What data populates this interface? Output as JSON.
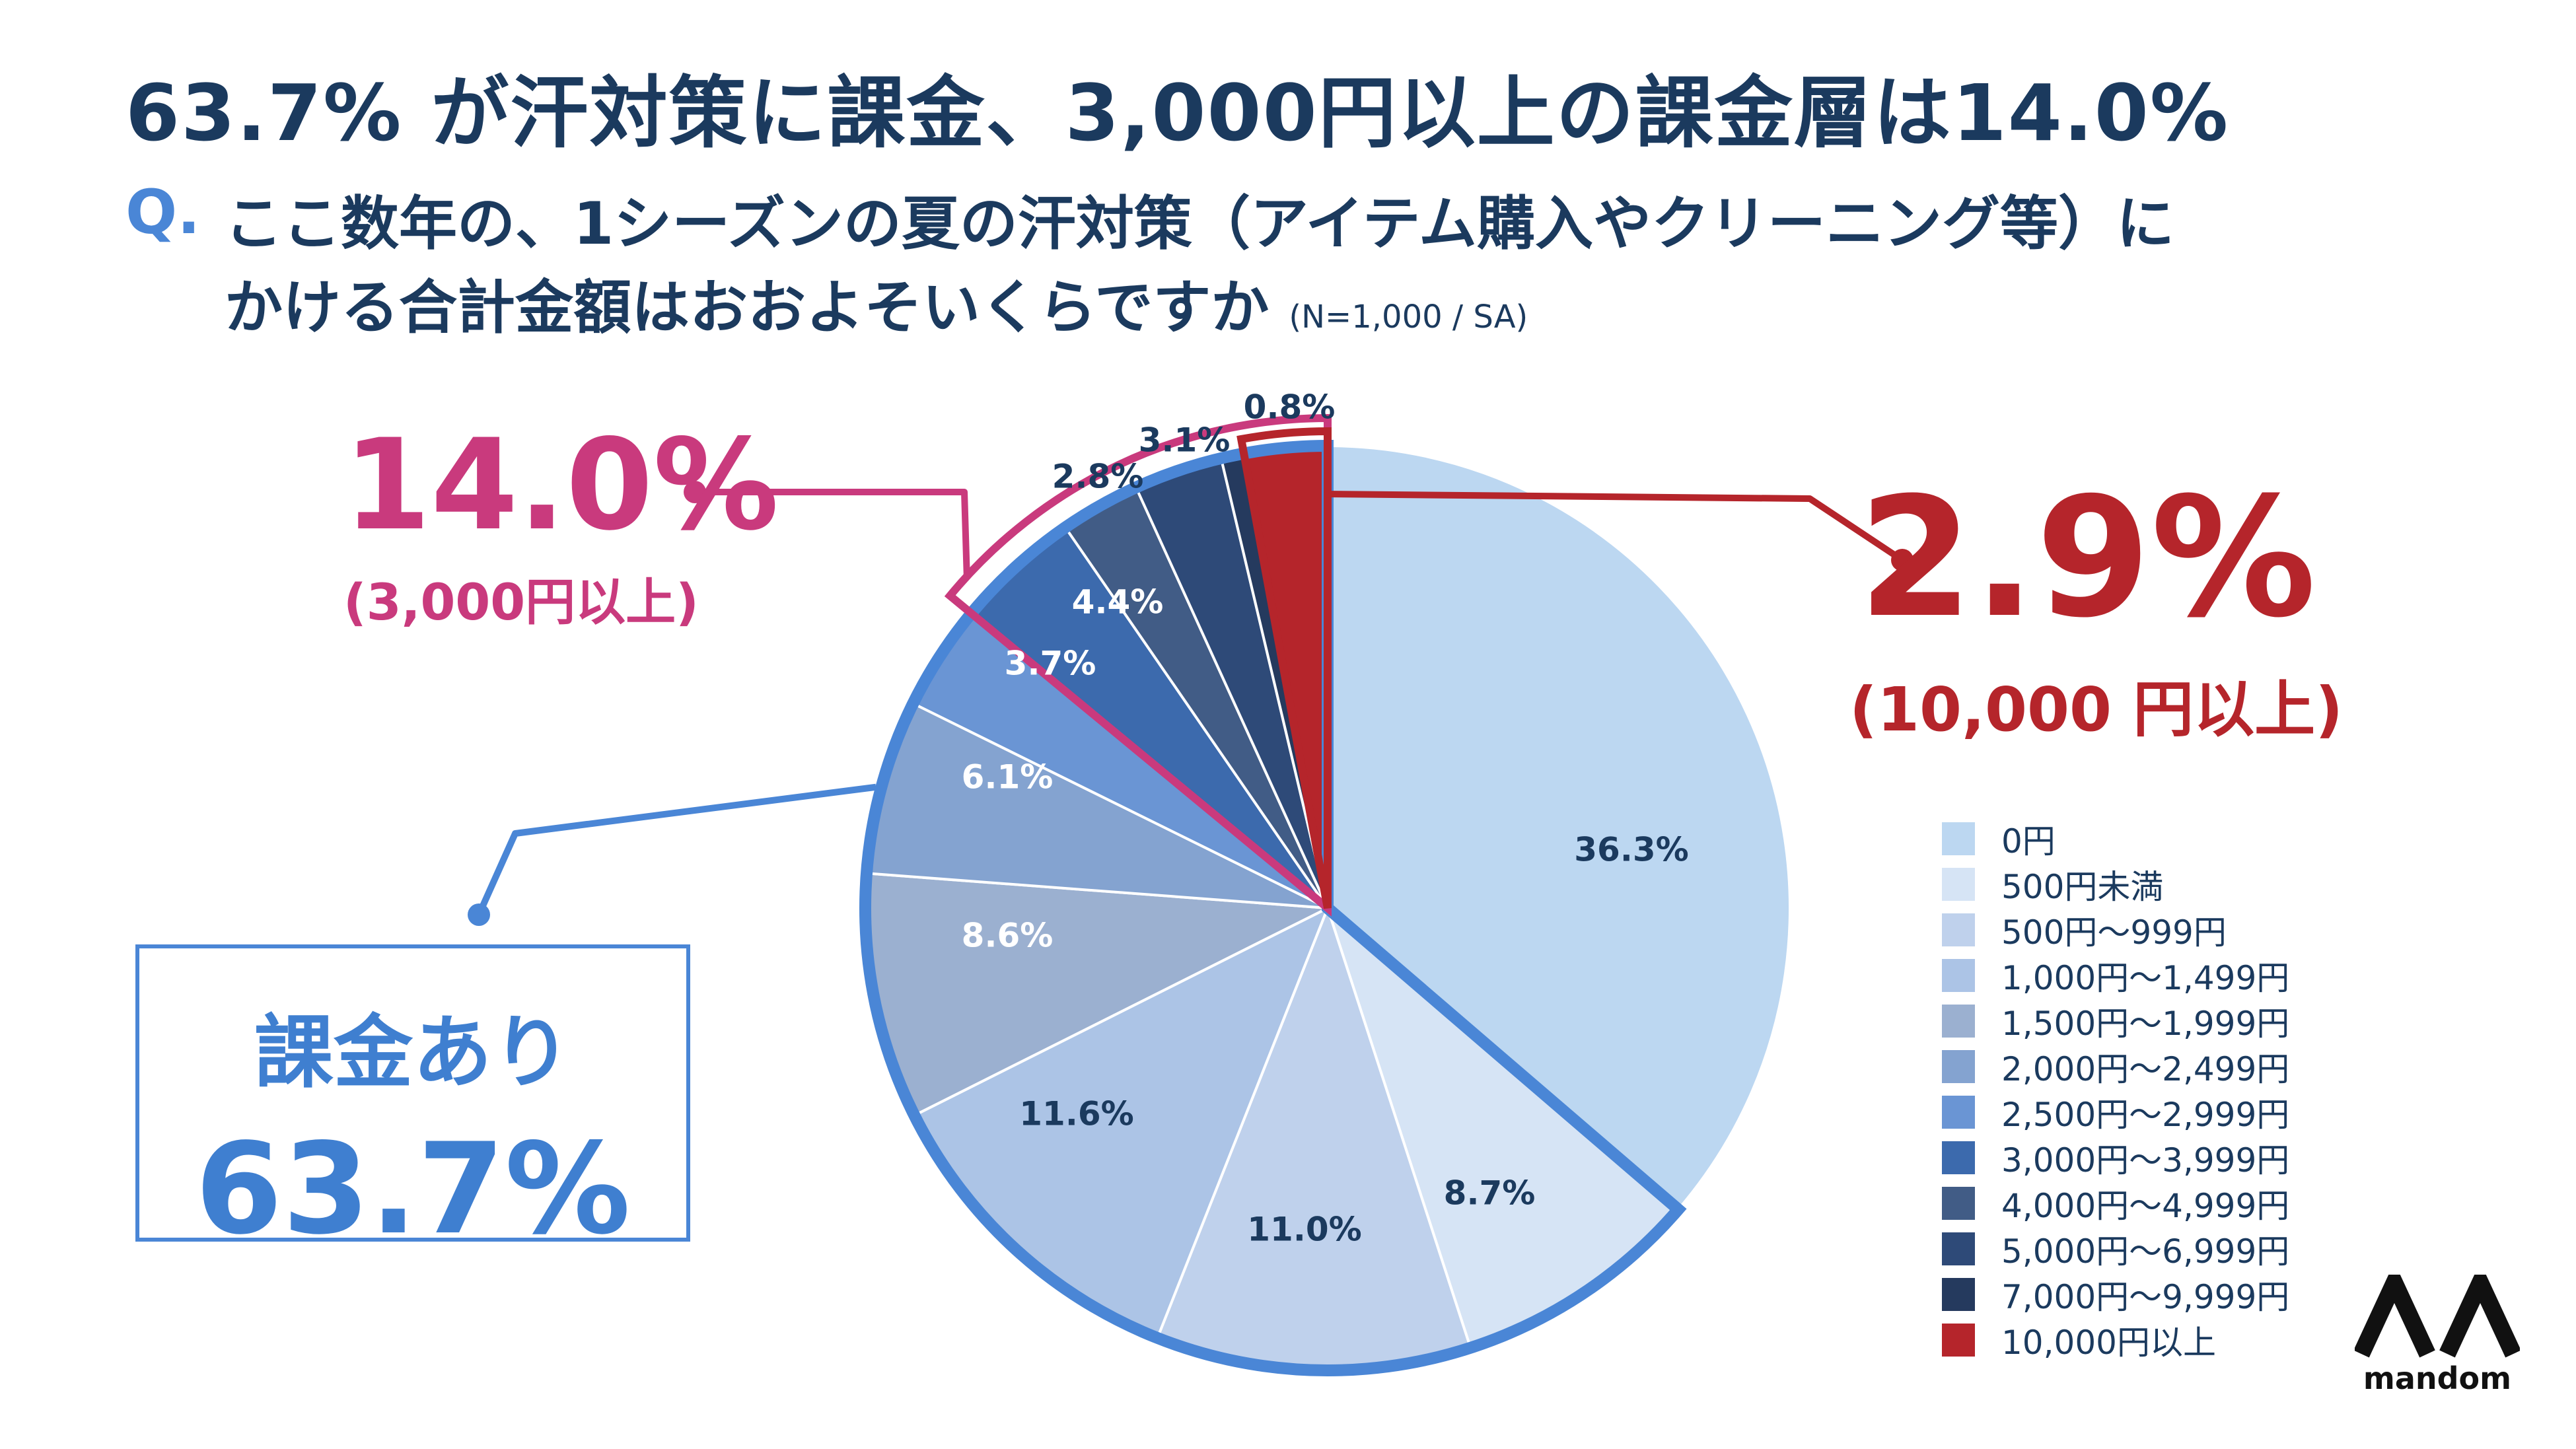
{
  "header": {
    "title": "63.7% が汗対策に課金、3,000円以上の課金層は14.0%",
    "question_prefix": "Q.",
    "question_line1": "ここ数年の、1シーズンの夏の汗対策（アイテム購入やクリーニング等）に",
    "question_line2": "かける合計金額はおおよそいくらですか",
    "sample_note": "(N=1,000 / SA)"
  },
  "chart_data": {
    "type": "pie",
    "start_angle_deg": 0,
    "direction": "clockwise",
    "slices": [
      {
        "label": "0円",
        "value": 36.3,
        "display": "36.3%",
        "color": "#bcd7f1",
        "text_color": "#1b3a5e"
      },
      {
        "label": "500円未満",
        "value": 8.7,
        "display": "8.7%",
        "color": "#d6e4f5",
        "text_color": "#1b3a5e"
      },
      {
        "label": "500円〜999円",
        "value": 11.0,
        "display": "11.0%",
        "color": "#bfd1ec",
        "text_color": "#1b3a5e"
      },
      {
        "label": "1,000円〜1,499円",
        "value": 11.6,
        "display": "11.6%",
        "color": "#acc4e6",
        "text_color": "#1b3a5e"
      },
      {
        "label": "1,500円〜1,999円",
        "value": 8.6,
        "display": "8.6%",
        "color": "#9bb0d0",
        "text_color": "#ffffff"
      },
      {
        "label": "2,000円〜2,499円",
        "value": 6.1,
        "display": "6.1%",
        "color": "#84a3d0",
        "text_color": "#ffffff"
      },
      {
        "label": "2,500円〜2,999円",
        "value": 3.7,
        "display": "3.7%",
        "color": "#6a95d4",
        "text_color": "#ffffff"
      },
      {
        "label": "3,000円〜3,999円",
        "value": 4.4,
        "display": "4.4%",
        "color": "#3c6aad",
        "text_color": "#ffffff"
      },
      {
        "label": "4,000円〜4,999円",
        "value": 2.8,
        "display": "2.8%",
        "color": "#415c86",
        "text_color": "#1b3a5e"
      },
      {
        "label": "5,000円〜6,999円",
        "value": 3.1,
        "display": "3.1%",
        "color": "#2e4a78",
        "text_color": "#1b3a5e"
      },
      {
        "label": "7,000円〜9,999円",
        "value": 0.8,
        "display": "0.8%",
        "color": "#253a5e",
        "text_color": "#1b3a5e"
      },
      {
        "label": "10,000円以上",
        "value": 2.9,
        "display": "",
        "color": "#b5252b",
        "text_color": "#ffffff"
      }
    ],
    "highlight_groups": [
      {
        "name": "課金あり",
        "slice_range": [
          1,
          11
        ],
        "value": "63.7%",
        "color": "#4a86d6"
      },
      {
        "name": "3,000円以上",
        "slice_range": [
          7,
          11
        ],
        "value": "14.0%",
        "color": "#c93a7d"
      },
      {
        "name": "10,000円以上",
        "slice_range": [
          11,
          11
        ],
        "value": "2.9%",
        "color": "#b5252b"
      }
    ]
  },
  "callouts": {
    "above_3000": {
      "value": "14.0%",
      "label": "(3,000円以上)"
    },
    "above_10000": {
      "value": "2.9%",
      "label": "(10,000 円以上)"
    },
    "paying": {
      "label": "課金あり",
      "value": "63.7%"
    }
  },
  "logo": {
    "text": "mandom"
  }
}
